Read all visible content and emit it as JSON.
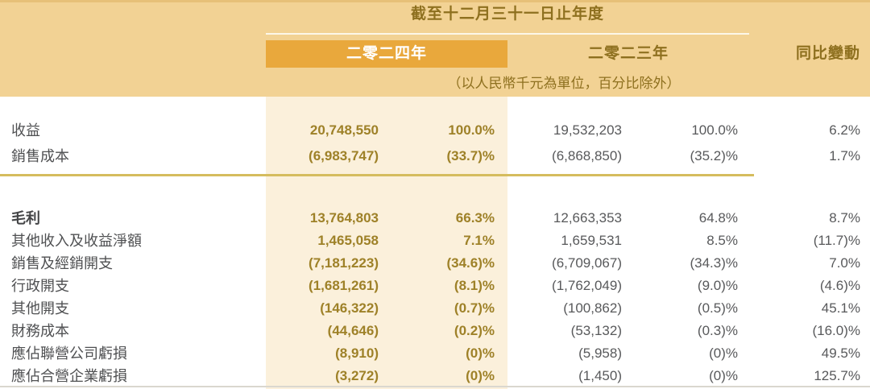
{
  "header": {
    "period_title": "截至十二月三十一日止年度",
    "unit_note": "（以人民幣千元為單位，百分比除外）",
    "col_year_2024": "二零二四年",
    "col_year_2023": "二零二三年",
    "col_yoy": "同比變動"
  },
  "colors": {
    "header_band_bg": "#F2D294",
    "highlight_header_bg": "#E9A83C",
    "highlight_column_bg": "#FBF0DB",
    "highlight_value_text": "#9E8128",
    "header_text": "#8E701F",
    "body_text": "#58595B",
    "gold_separator": "#D5BC5E"
  },
  "rows_top": [
    {
      "label": "收益",
      "v24": "20,748,550",
      "p24": "100.0%",
      "v23": "19,532,203",
      "p23": "100.0%",
      "yoy": "6.2%"
    },
    {
      "label": "銷售成本",
      "v24": "(6,983,747)",
      "p24": "(33.7)%",
      "v23": "(6,868,850)",
      "p23": "(35.2)%",
      "yoy": "1.7%"
    }
  ],
  "rows_main": [
    {
      "label": "毛利",
      "v24": "13,764,803",
      "p24": "66.3%",
      "v23": "12,663,353",
      "p23": "64.8%",
      "yoy": "8.7%"
    },
    {
      "label": "其他收入及收益淨額",
      "v24": "1,465,058",
      "p24": "7.1%",
      "v23": "1,659,531",
      "p23": "8.5%",
      "yoy": "(11.7)%"
    },
    {
      "label": "銷售及經銷開支",
      "v24": "(7,181,223)",
      "p24": "(34.6)%",
      "v23": "(6,709,067)",
      "p23": "(34.3)%",
      "yoy": "7.0%"
    },
    {
      "label": "行政開支",
      "v24": "(1,681,261)",
      "p24": "(8.1)%",
      "v23": "(1,762,049)",
      "p23": "(9.0)%",
      "yoy": "(4.6)%"
    },
    {
      "label": "其他開支",
      "v24": "(146,322)",
      "p24": "(0.7)%",
      "v23": "(100,862)",
      "p23": "(0.5)%",
      "yoy": "45.1%"
    },
    {
      "label": "財務成本",
      "v24": "(44,646)",
      "p24": "(0.2)%",
      "v23": "(53,132)",
      "p23": "(0.3)%",
      "yoy": "(16.0)%"
    },
    {
      "label": "應佔聯營公司虧損",
      "v24": "(8,910)",
      "p24": "(0)%",
      "v23": "(5,958)",
      "p23": "(0)%",
      "yoy": "49.5%"
    },
    {
      "label": "應佔合營企業虧損",
      "v24": "(3,272)",
      "p24": "(0)%",
      "v23": "(1,450)",
      "p23": "(0)%",
      "yoy": "125.7%"
    }
  ]
}
